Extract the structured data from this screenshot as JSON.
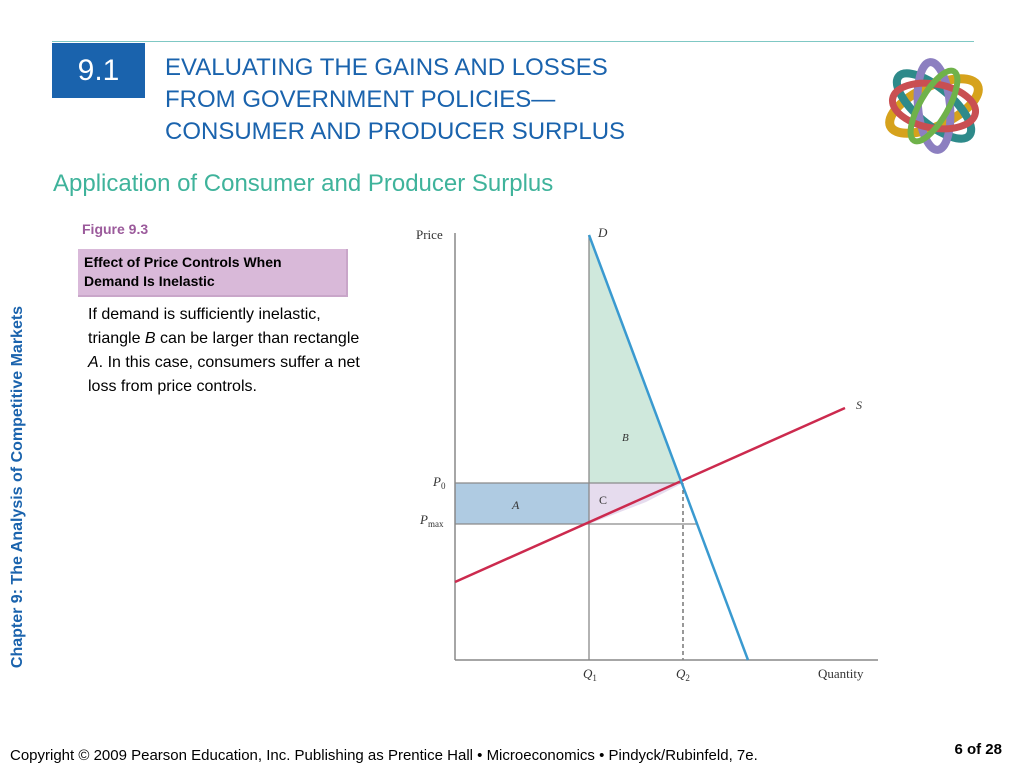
{
  "section": {
    "number": "9.1"
  },
  "title": {
    "line1": "EVALUATING THE GAINS AND LOSSES",
    "line2": "FROM GOVERNMENT POLICIES—",
    "line3": "CONSUMER AND PRODUCER SURPLUS"
  },
  "subtitle": "Application of Consumer and Producer Surplus",
  "sidebar": {
    "chapter": "Chapter 9:  The Analysis of Competitive Markets"
  },
  "figure": {
    "label": "Figure 9.3",
    "caption": "Effect of Price Controls When Demand Is Inelastic"
  },
  "body": {
    "part1": "If demand is sufficiently inelastic, triangle ",
    "B": "B",
    "part2": " can be larger than rectangle ",
    "A": "A",
    "part3": ". In this case, consumers suffer a net loss from price controls."
  },
  "diagram": {
    "y_axis_label": "Price",
    "x_axis_label": "Quantity",
    "demand_label": "D",
    "supply_label": "S",
    "p0_label": "P",
    "p0_sub": "0",
    "pmax_label": "P",
    "pmax_sub": "max",
    "q1_label": "Q",
    "q1_sub": "1",
    "q2_label": "Q",
    "q2_sub": "2",
    "area_a": "A",
    "area_b": "B",
    "area_c": "C",
    "colors": {
      "demand": "#3a9ad0",
      "supply": "#cc2a4e",
      "area_a": "#afcbe2",
      "area_b": "#cfe8dc",
      "area_c": "#e6dcee"
    }
  },
  "footer": {
    "copyright": "Copyright © 2009 Pearson Education, Inc. Publishing as Prentice Hall  •  Microeconomics  •  Pindyck/Rubinfeld, 7e.",
    "page": "6 of 28"
  }
}
